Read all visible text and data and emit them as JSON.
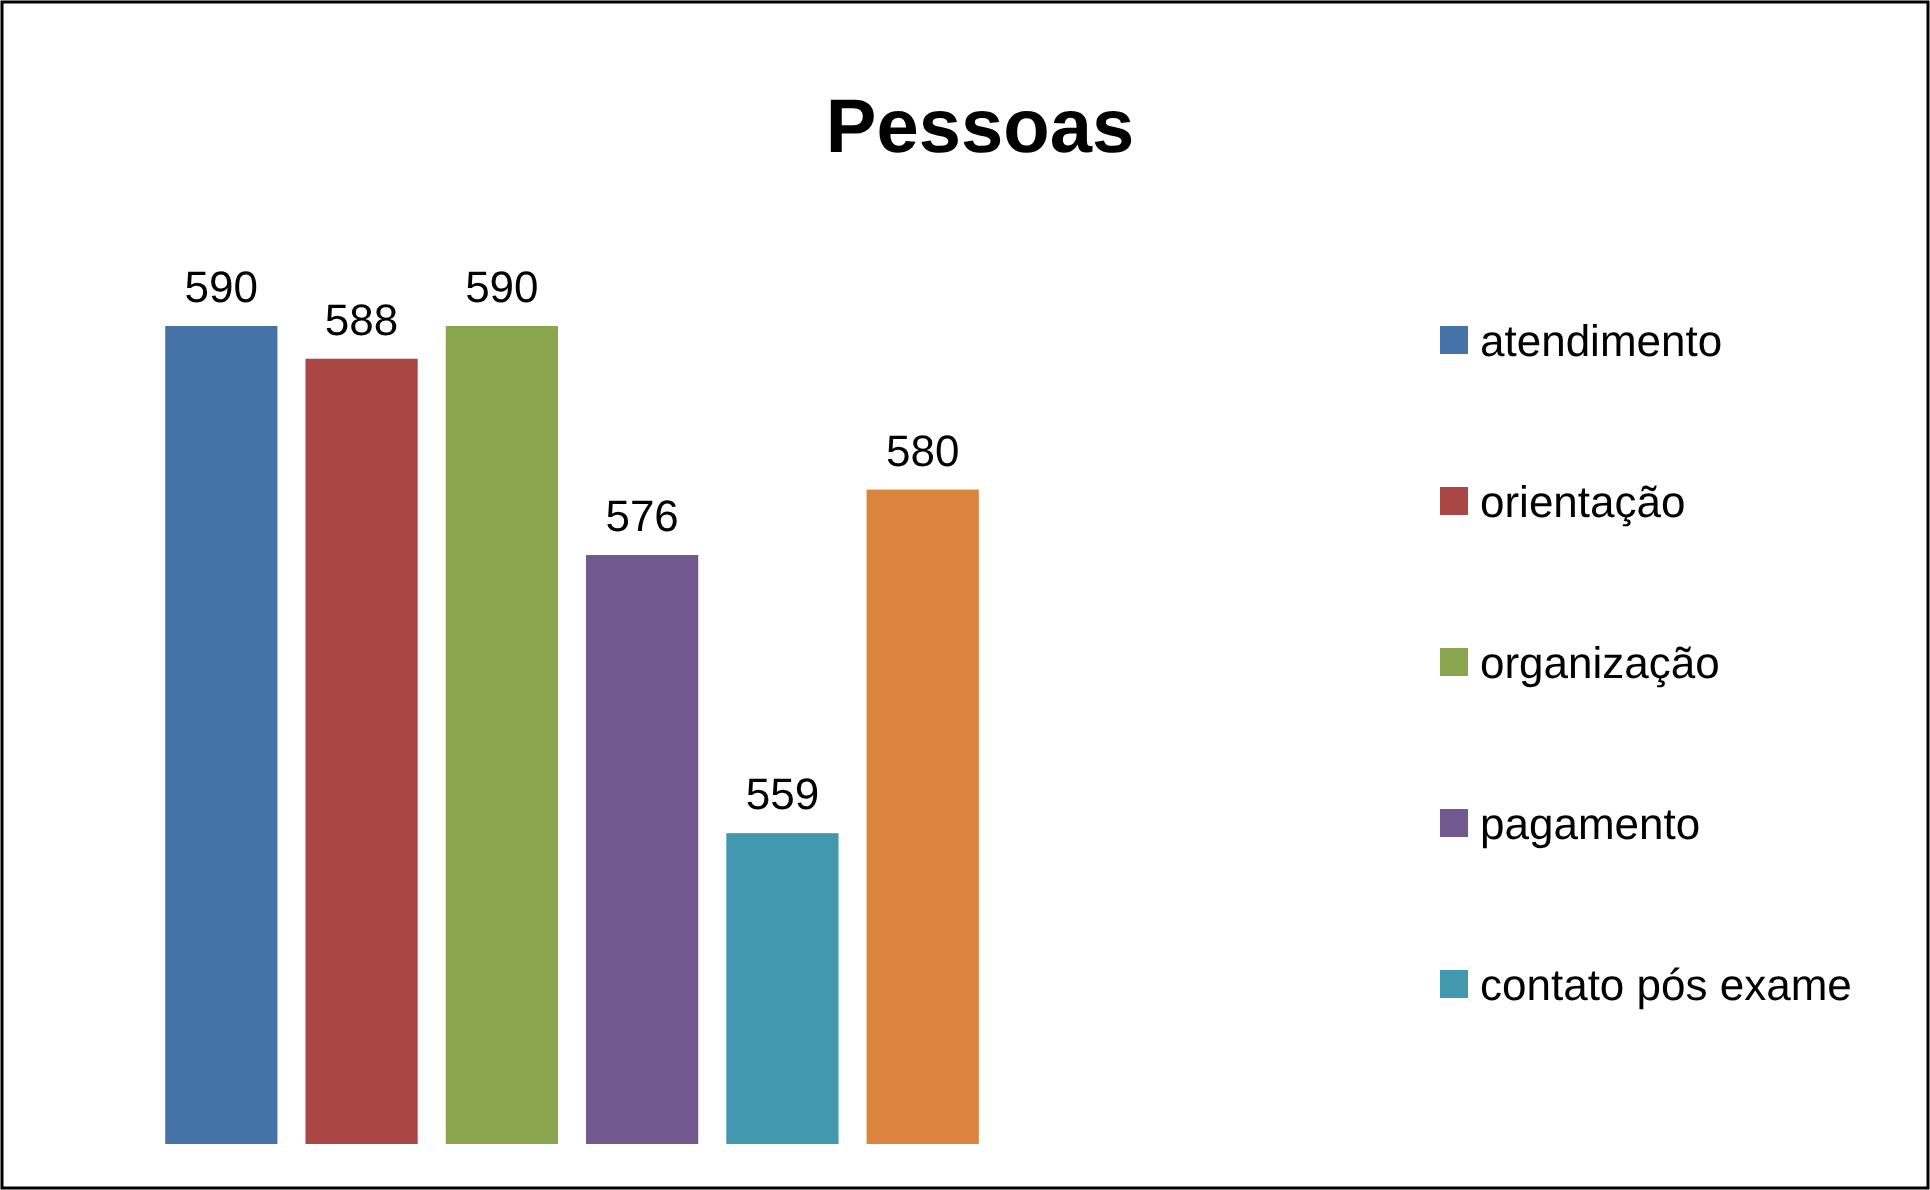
{
  "chart_data": {
    "type": "bar",
    "title": "Pessoas",
    "categories": [
      null
    ],
    "series": [
      {
        "name": "atendimento",
        "color": "#4572a7",
        "values": [
          590
        ]
      },
      {
        "name": "orientação",
        "color": "#aa4643",
        "values": [
          588
        ]
      },
      {
        "name": "organização",
        "color": "#89a54e",
        "values": [
          590
        ]
      },
      {
        "name": "pagamento",
        "color": "#71588f",
        "values": [
          576
        ]
      },
      {
        "name": "contato pós exame",
        "color": "#4198af",
        "values": [
          559
        ]
      },
      {
        "color": "#db843d",
        "values": [
          580
        ]
      }
    ],
    "ylim": [
      540,
      590
    ],
    "data_labels": true,
    "legend": "right"
  }
}
